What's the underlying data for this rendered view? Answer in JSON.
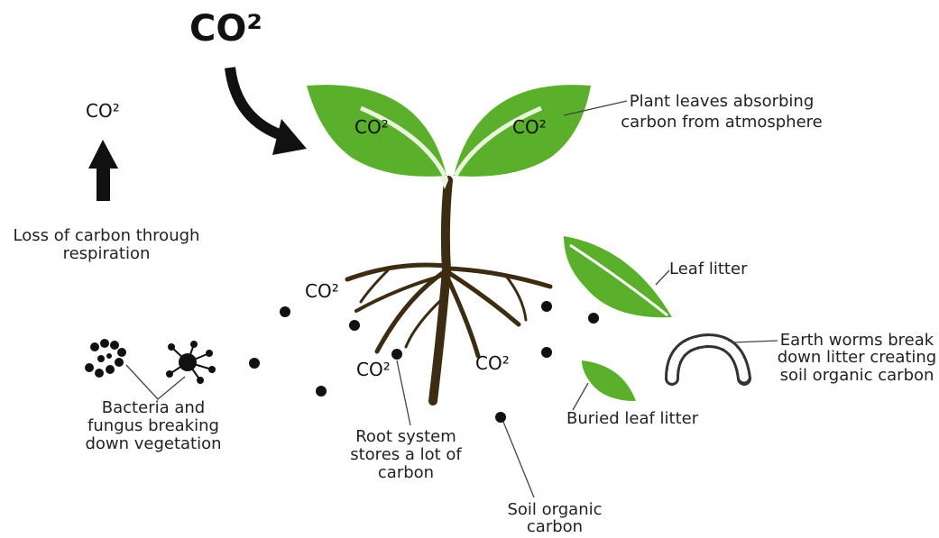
{
  "co2": {
    "main": "CO²",
    "respiration": "CO²",
    "leaf_left": "CO²",
    "leaf_right": "CO²",
    "root_upper": "CO²",
    "root_left": "CO²",
    "root_right": "CO²"
  },
  "labels": {
    "respiration": [
      "Loss of carbon through",
      "respiration"
    ],
    "plant_leaves": [
      "Plant leaves absorbing",
      "carbon from atmosphere"
    ],
    "leaf_litter": [
      "Leaf litter"
    ],
    "earth_worms": [
      "Earth worms break",
      "down litter creating",
      "soil organic carbon"
    ],
    "bacteria": [
      "Bacteria and",
      "fungus breaking",
      "down vegetation"
    ],
    "buried_leaf": [
      "Buried leaf litter"
    ],
    "root_system": [
      "Root system",
      "stores a lot of",
      "carbon"
    ],
    "soil_carbon": [
      "Soil organic",
      "carbon"
    ]
  }
}
